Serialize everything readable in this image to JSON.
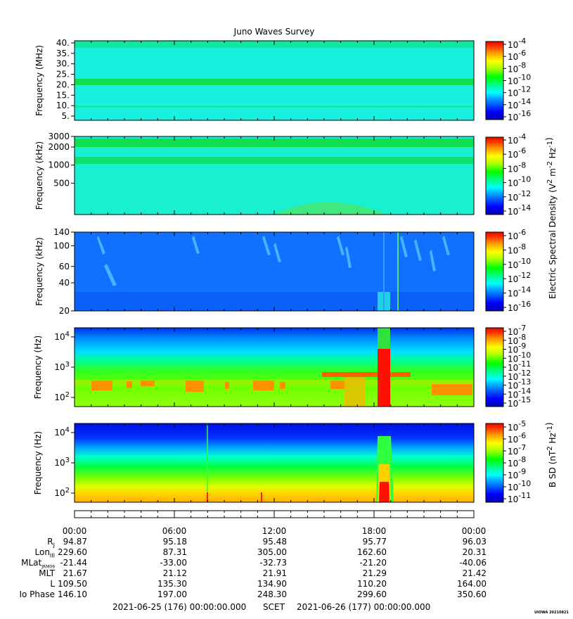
{
  "title": "Juno Waves Survey",
  "colors": {
    "colormap": [
      "#0000b0",
      "#0000ff",
      "#0090ff",
      "#00ffff",
      "#00ff80",
      "#00ff00",
      "#a0ff00",
      "#ffff00",
      "#ffb000",
      "#ff5000",
      "#ff0000"
    ],
    "background_e": "#20e8e0",
    "background_mid": "#1070ff",
    "background_b": "#0018e0"
  },
  "chart_data": {
    "type": "heatmap",
    "time_ticks": [
      "00:00",
      "06:00",
      "12:00",
      "18:00",
      "00:00"
    ],
    "panels": [
      {
        "id": "hfr-high",
        "ylabel": "Frequency (MHz)",
        "yscale": "linear",
        "ylim": [
          3,
          41
        ],
        "yticks": [
          "40.",
          "35.",
          "30.",
          "25.",
          "20.",
          "15.",
          "10.",
          "5."
        ],
        "colorbar_ticks": [
          "10",
          "10",
          "10",
          "10",
          "10",
          "10",
          "10"
        ],
        "colorbar_exponents": [
          "-4",
          "-6",
          "-8",
          "-10",
          "-12",
          "-14",
          "-16"
        ]
      },
      {
        "id": "hfr-low",
        "ylabel": "Frequency (kHz)",
        "yscale": "log",
        "ylim": [
          150,
          3000
        ],
        "yticks": [
          "3000",
          "2000",
          "1000",
          "500"
        ],
        "colorbar_ticks": [
          "10",
          "10",
          "10",
          "10",
          "10",
          "10"
        ],
        "colorbar_exponents": [
          "-4",
          "-6",
          "-8",
          "-10",
          "-12",
          "-14"
        ]
      },
      {
        "id": "lfr-high",
        "ylabel": "Frequency (kHz)",
        "yscale": "log",
        "ylim": [
          20,
          140
        ],
        "yticks": [
          "140",
          "100",
          "60",
          "40",
          "20"
        ],
        "colorbar_ticks": [
          "10",
          "10",
          "10",
          "10",
          "10",
          "10"
        ],
        "colorbar_exponents": [
          "-6",
          "-8",
          "-10",
          "-12",
          "-14",
          "-16"
        ]
      },
      {
        "id": "lfr-low-e",
        "ylabel": "Frequency (Hz)",
        "yscale": "log",
        "ylim": [
          50,
          20000
        ],
        "yticks": [
          "10",
          "10",
          "10"
        ],
        "ytick_exponents": [
          "4",
          "3",
          "2"
        ],
        "colorbar_ticks": [
          "10",
          "10",
          "10",
          "10",
          "10",
          "10",
          "10",
          "10",
          "10"
        ],
        "colorbar_exponents": [
          "-7",
          "-8",
          "-9",
          "-10",
          "-11",
          "-12",
          "-13",
          "-14",
          "-15"
        ]
      },
      {
        "id": "lfr-low-b",
        "ylabel": "Frequency (Hz)",
        "yscale": "log",
        "ylim": [
          50,
          20000
        ],
        "yticks": [
          "10",
          "10",
          "10"
        ],
        "ytick_exponents": [
          "4",
          "3",
          "2"
        ],
        "colorbar_ticks": [
          "10",
          "10",
          "10",
          "10",
          "10",
          "10",
          "10"
        ],
        "colorbar_exponents": [
          "-5",
          "-6",
          "-7",
          "-8",
          "-9",
          "-10",
          "-11"
        ]
      }
    ],
    "colorbar_e_label": "Electric Spectral Density (V",
    "colorbar_e_label_parts": [
      "2",
      " m",
      "-2",
      " Hz",
      "-1",
      ")"
    ],
    "colorbar_b_label": "B SD (nT",
    "colorbar_b_label_parts": [
      "2",
      " Hz",
      "-1",
      ")"
    ]
  },
  "ephemeris": {
    "labels": [
      "R",
      "Lon",
      "MLat",
      "MLT",
      "L",
      "Io Phase"
    ],
    "label_subs": [
      "J",
      "III",
      "JRM09",
      "",
      "",
      ""
    ],
    "columns": [
      [
        "94.87",
        "229.60",
        "-21.44",
        "21.67",
        "109.50",
        "146.10"
      ],
      [
        "95.18",
        "87.31",
        "-33.00",
        "21.12",
        "135.30",
        "197.00"
      ],
      [
        "95.48",
        "305.00",
        "-32.73",
        "21.91",
        "134.90",
        "248.30"
      ],
      [
        "95.77",
        "162.60",
        "-21.20",
        "21.29",
        "110.20",
        "299.60"
      ],
      [
        "96.03",
        "20.31",
        "-40.06",
        "21.42",
        "164.00",
        "350.60"
      ]
    ]
  },
  "footer": {
    "start": "2021-06-25 (176) 00:00:00.000",
    "scet": "SCET",
    "end": "2021-06-26 (177) 00:00:00.000"
  },
  "stamp": "UIOWA 20210821"
}
